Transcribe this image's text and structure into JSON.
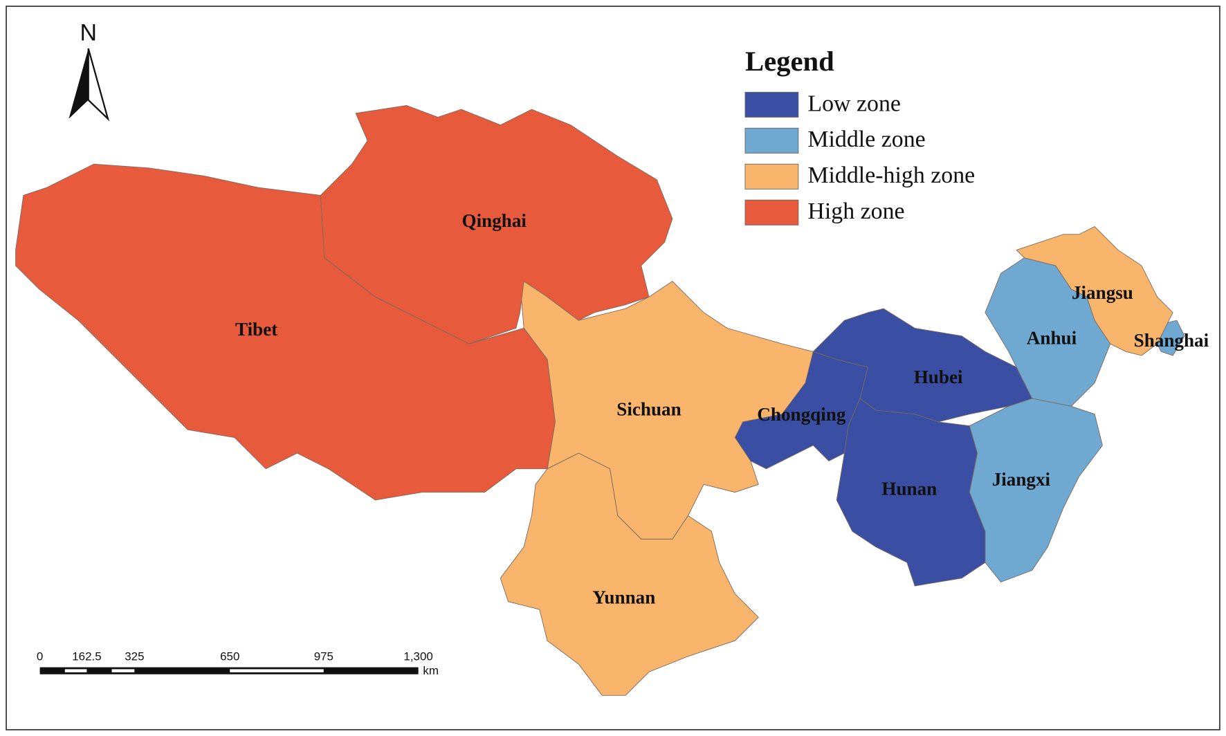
{
  "map": {
    "north_label": "N",
    "legend": {
      "title": "Legend",
      "items": [
        {
          "label": "Low zone",
          "color": "#3a4fa3",
          "regions": [
            "Chongqing",
            "Hubei",
            "Hunan"
          ]
        },
        {
          "label": "Middle zone",
          "color": "#6fa8d0",
          "regions": [
            "Anhui",
            "Jiangxi",
            "Shanghai"
          ]
        },
        {
          "label": "Middle-high zone",
          "color": "#f8b56b",
          "regions": [
            "Sichuan",
            "Yunnan",
            "Jiangsu"
          ]
        },
        {
          "label": "High zone",
          "color": "#e85a3c",
          "regions": [
            "Tibet",
            "Qinghai"
          ]
        }
      ]
    },
    "scale_bar": {
      "labels": [
        "0",
        "162.5",
        "325",
        "650",
        "975",
        "1,300"
      ],
      "unit": "km"
    }
  }
}
